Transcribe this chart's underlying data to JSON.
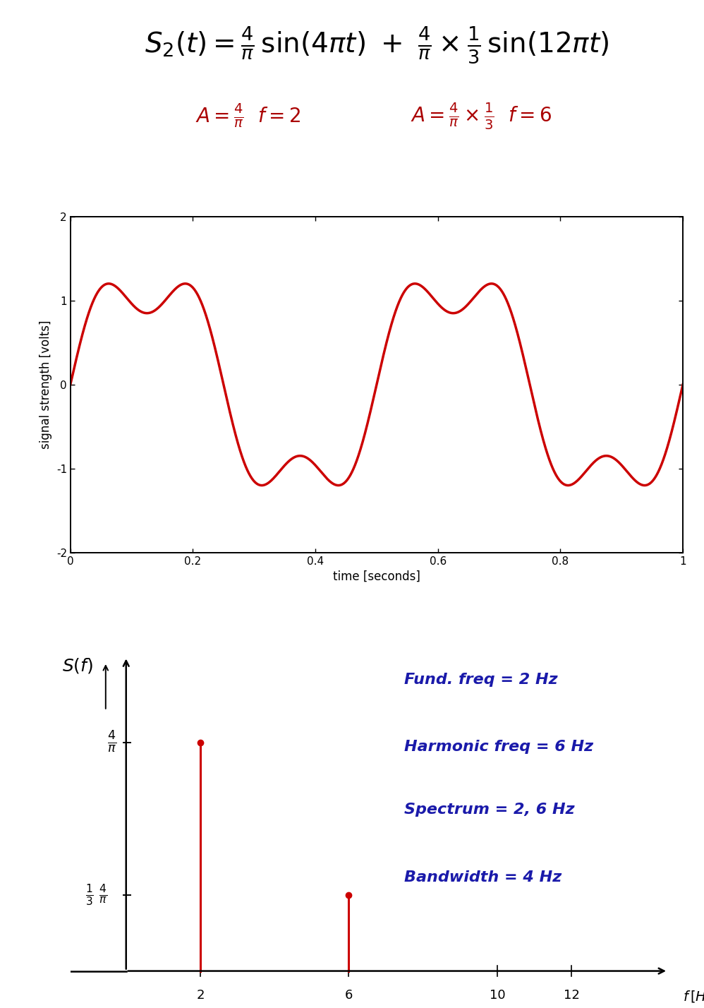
{
  "time_xlabel": "time [seconds]",
  "time_ylabel": "signal strength [volts]",
  "time_xlim": [
    0,
    1
  ],
  "time_ylim": [
    -2,
    2
  ],
  "time_xticks": [
    0,
    0.2,
    0.4,
    0.6,
    0.8,
    1.0
  ],
  "time_xtick_labels": [
    "0",
    "0.2",
    "0.4",
    "0.6",
    "0.8",
    "1"
  ],
  "time_yticks": [
    -2,
    -1,
    0,
    1,
    2
  ],
  "signal_color": "#cc0000",
  "signal_linewidth": 2.5,
  "freq_spikes": [
    {
      "freq": 2,
      "amp": 1.2732
    },
    {
      "freq": 6,
      "amp": 0.4244
    }
  ],
  "freq_xticks": [
    2,
    6,
    10,
    12
  ],
  "freq_xlim": [
    -1.5,
    15
  ],
  "freq_ylim": [
    -0.15,
    1.9
  ],
  "spike_color": "#cc0000",
  "annotation_color": "#1a1aaa",
  "annotations": [
    "Fund. freq = 2 Hz",
    "Harmonic freq = 6 Hz",
    "Spectrum = 2, 6 Hz",
    "Bandwidth = 4 Hz"
  ],
  "bg_color": "#ffffff",
  "formula_fontsize": 28,
  "subtitle_fontsize": 20,
  "subtitle_color": "#aa0000",
  "time_label_fontsize": 12,
  "freq_label_fontsize": 14,
  "freq_tick_fontsize": 13,
  "ann_fontsize": 16
}
